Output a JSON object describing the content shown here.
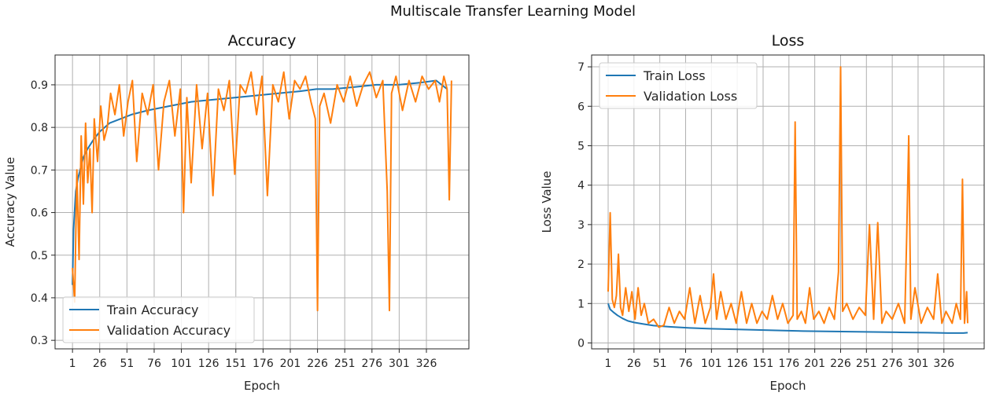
{
  "suptitle": "Multiscale Transfer Learning Model",
  "colors": {
    "train": "#1f77b4",
    "validation": "#ff7f0e",
    "grid": "#b0b0b0"
  },
  "chart_data": [
    {
      "type": "line",
      "title": "Accuracy",
      "xlabel": "Epoch",
      "ylabel": "Accuracy Value",
      "xlim": [
        -15,
        365
      ],
      "ylim": [
        0.28,
        0.97
      ],
      "xticks": [
        1,
        26,
        51,
        76,
        101,
        126,
        151,
        176,
        201,
        226,
        251,
        276,
        301,
        326
      ],
      "yticks": [
        0.3,
        0.4,
        0.5,
        0.6,
        0.7,
        0.8,
        0.9
      ],
      "grid": true,
      "legend_position": "lower-left",
      "series": [
        {
          "name": "Train Accuracy",
          "x": [
            1,
            2,
            4,
            6,
            8,
            11,
            15,
            20,
            26,
            35,
            45,
            55,
            70,
            90,
            110,
            130,
            150,
            170,
            190,
            210,
            225,
            240,
            260,
            280,
            300,
            320,
            335,
            345
          ],
          "y": [
            0.43,
            0.56,
            0.65,
            0.68,
            0.7,
            0.73,
            0.75,
            0.77,
            0.79,
            0.81,
            0.82,
            0.83,
            0.84,
            0.85,
            0.86,
            0.865,
            0.87,
            0.875,
            0.88,
            0.885,
            0.89,
            0.89,
            0.895,
            0.9,
            0.9,
            0.905,
            0.91,
            0.89
          ]
        },
        {
          "name": "Validation Accuracy",
          "x": [
            1,
            3,
            5,
            7,
            9,
            11,
            13,
            15,
            17,
            19,
            21,
            24,
            27,
            30,
            33,
            36,
            40,
            44,
            48,
            52,
            56,
            60,
            65,
            70,
            75,
            80,
            85,
            90,
            95,
            100,
            103,
            106,
            110,
            115,
            120,
            125,
            130,
            135,
            140,
            145,
            150,
            155,
            160,
            165,
            170,
            175,
            180,
            185,
            190,
            195,
            200,
            205,
            210,
            215,
            220,
            224,
            226,
            228,
            232,
            238,
            244,
            250,
            256,
            262,
            268,
            274,
            280,
            286,
            290,
            292,
            294,
            298,
            304,
            310,
            316,
            322,
            328,
            334,
            338,
            342,
            345,
            347,
            349
          ],
          "y": [
            0.47,
            0.39,
            0.7,
            0.49,
            0.78,
            0.62,
            0.81,
            0.67,
            0.75,
            0.6,
            0.82,
            0.72,
            0.85,
            0.77,
            0.8,
            0.88,
            0.83,
            0.9,
            0.78,
            0.86,
            0.91,
            0.72,
            0.88,
            0.83,
            0.9,
            0.7,
            0.86,
            0.91,
            0.78,
            0.89,
            0.6,
            0.87,
            0.67,
            0.9,
            0.75,
            0.88,
            0.64,
            0.89,
            0.84,
            0.91,
            0.69,
            0.9,
            0.88,
            0.93,
            0.83,
            0.92,
            0.64,
            0.9,
            0.86,
            0.93,
            0.82,
            0.91,
            0.89,
            0.92,
            0.86,
            0.82,
            0.37,
            0.85,
            0.88,
            0.81,
            0.9,
            0.86,
            0.92,
            0.85,
            0.9,
            0.93,
            0.87,
            0.91,
            0.65,
            0.37,
            0.88,
            0.92,
            0.84,
            0.91,
            0.86,
            0.92,
            0.89,
            0.91,
            0.86,
            0.92,
            0.89,
            0.63,
            0.91
          ]
        }
      ]
    },
    {
      "type": "line",
      "title": "Loss",
      "xlabel": "Epoch",
      "ylabel": "Loss Value",
      "xlim": [
        -15,
        365
      ],
      "ylim": [
        -0.15,
        7.3
      ],
      "xticks": [
        1,
        26,
        51,
        76,
        101,
        126,
        151,
        176,
        201,
        226,
        251,
        276,
        301,
        326
      ],
      "yticks": [
        0,
        1,
        2,
        3,
        4,
        5,
        6,
        7
      ],
      "grid": true,
      "legend_position": "upper-left",
      "series": [
        {
          "name": "Train Loss",
          "x": [
            1,
            3,
            6,
            10,
            15,
            20,
            26,
            35,
            45,
            60,
            80,
            100,
            130,
            160,
            190,
            220,
            250,
            280,
            310,
            330,
            345,
            349
          ],
          "y": [
            1.0,
            0.85,
            0.78,
            0.7,
            0.62,
            0.56,
            0.52,
            0.48,
            0.44,
            0.41,
            0.38,
            0.36,
            0.34,
            0.32,
            0.3,
            0.29,
            0.28,
            0.27,
            0.26,
            0.25,
            0.25,
            0.26
          ]
        },
        {
          "name": "Validation Loss",
          "x": [
            1,
            3,
            5,
            7,
            9,
            11,
            13,
            15,
            18,
            21,
            24,
            27,
            30,
            33,
            36,
            40,
            45,
            50,
            55,
            60,
            65,
            70,
            75,
            80,
            85,
            90,
            95,
            100,
            103,
            106,
            110,
            115,
            120,
            125,
            130,
            135,
            140,
            145,
            150,
            155,
            160,
            165,
            170,
            175,
            180,
            182,
            184,
            188,
            192,
            196,
            200,
            205,
            210,
            215,
            220,
            224,
            226,
            228,
            232,
            238,
            244,
            250,
            254,
            258,
            262,
            266,
            270,
            276,
            282,
            288,
            290,
            292,
            294,
            298,
            304,
            310,
            316,
            320,
            324,
            328,
            334,
            338,
            342,
            344,
            346,
            348,
            349
          ],
          "y": [
            1.3,
            3.3,
            1.1,
            0.9,
            1.2,
            2.25,
            0.9,
            0.7,
            1.4,
            0.8,
            1.3,
            0.6,
            1.4,
            0.7,
            1.0,
            0.5,
            0.6,
            0.4,
            0.45,
            0.9,
            0.5,
            0.8,
            0.6,
            1.4,
            0.5,
            1.2,
            0.5,
            0.9,
            1.75,
            0.6,
            1.3,
            0.6,
            1.0,
            0.5,
            1.3,
            0.5,
            1.0,
            0.5,
            0.8,
            0.6,
            1.2,
            0.6,
            1.0,
            0.5,
            0.7,
            5.6,
            0.6,
            0.8,
            0.5,
            1.4,
            0.6,
            0.8,
            0.5,
            0.9,
            0.6,
            1.8,
            7.0,
            0.8,
            1.0,
            0.6,
            0.9,
            0.7,
            3.0,
            0.6,
            3.05,
            0.5,
            0.8,
            0.6,
            1.0,
            0.5,
            2.7,
            5.25,
            0.6,
            1.4,
            0.5,
            0.9,
            0.6,
            1.75,
            0.5,
            0.8,
            0.5,
            1.0,
            0.6,
            4.15,
            0.5,
            1.3,
            0.5
          ]
        }
      ]
    }
  ]
}
